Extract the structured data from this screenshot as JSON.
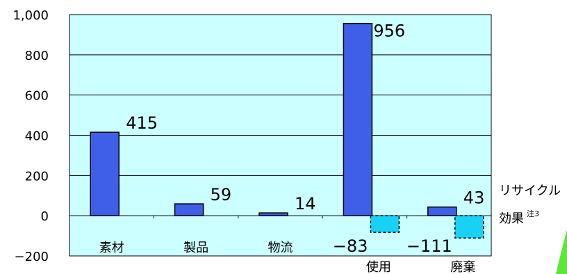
{
  "chart_data": {
    "type": "bar",
    "categories": [
      "素材",
      "製品",
      "物流",
      "使用",
      "廃棄"
    ],
    "series": [
      {
        "values": [
          415,
          59,
          14,
          956,
          43
        ]
      },
      {
        "name": "リサイクル効果",
        "name_sup": "注3",
        "values": [
          null,
          null,
          null,
          -83,
          -111
        ]
      }
    ],
    "data_labels": {
      "main": [
        "415",
        "59",
        "14",
        "956",
        "43"
      ],
      "recycle": [
        "",
        "",
        "",
        "−83",
        "−111"
      ]
    },
    "y_ticks": [
      "1,000",
      "800",
      "600",
      "400",
      "200",
      "0",
      "−200"
    ],
    "y_tick_values": [
      1000,
      800,
      600,
      400,
      200,
      0,
      -200
    ],
    "ylim": [
      -200,
      1000
    ],
    "grid": true,
    "legend_position": "right",
    "colors": {
      "plot_bg": "#ccffff",
      "main_bar": "#3f5fe8",
      "recycle_bar": "#19d0f5",
      "grid": "#000000",
      "deco": "#5ee63c"
    }
  }
}
